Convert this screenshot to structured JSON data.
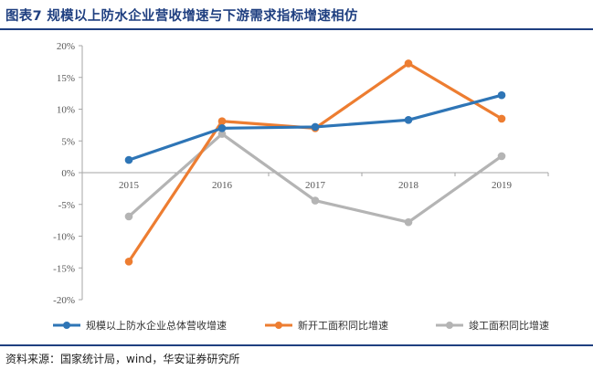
{
  "title": "图表7  规模以上防水企业营收增速与下游需求指标增速相仿",
  "source": "资料来源：国家统计局，wind，华安证券研究所",
  "chart_data": {
    "type": "line",
    "categories": [
      "2015",
      "2016",
      "2017",
      "2018",
      "2019"
    ],
    "ylim": [
      -20,
      20
    ],
    "yticks": [
      -20,
      -15,
      -10,
      -5,
      0,
      5,
      10,
      15,
      20
    ],
    "ytick_labels": [
      "-20%",
      "-15%",
      "-10%",
      "-5%",
      "0%",
      "5%",
      "10%",
      "15%",
      "20%"
    ],
    "ylabel": "",
    "xlabel": "",
    "legend_position": "bottom",
    "series": [
      {
        "name": "规模以上防水企业总体营收增速",
        "color": "#2e75b6",
        "values": [
          2.0,
          7.0,
          7.2,
          8.3,
          12.2
        ]
      },
      {
        "name": "新开工面积同比增速",
        "color": "#ed7d31",
        "values": [
          -14.0,
          8.1,
          7.0,
          17.2,
          8.5
        ]
      },
      {
        "name": "竣工面积同比增速",
        "color": "#b4b4b4",
        "values": [
          -6.9,
          6.1,
          -4.4,
          -7.8,
          2.6
        ]
      }
    ]
  }
}
